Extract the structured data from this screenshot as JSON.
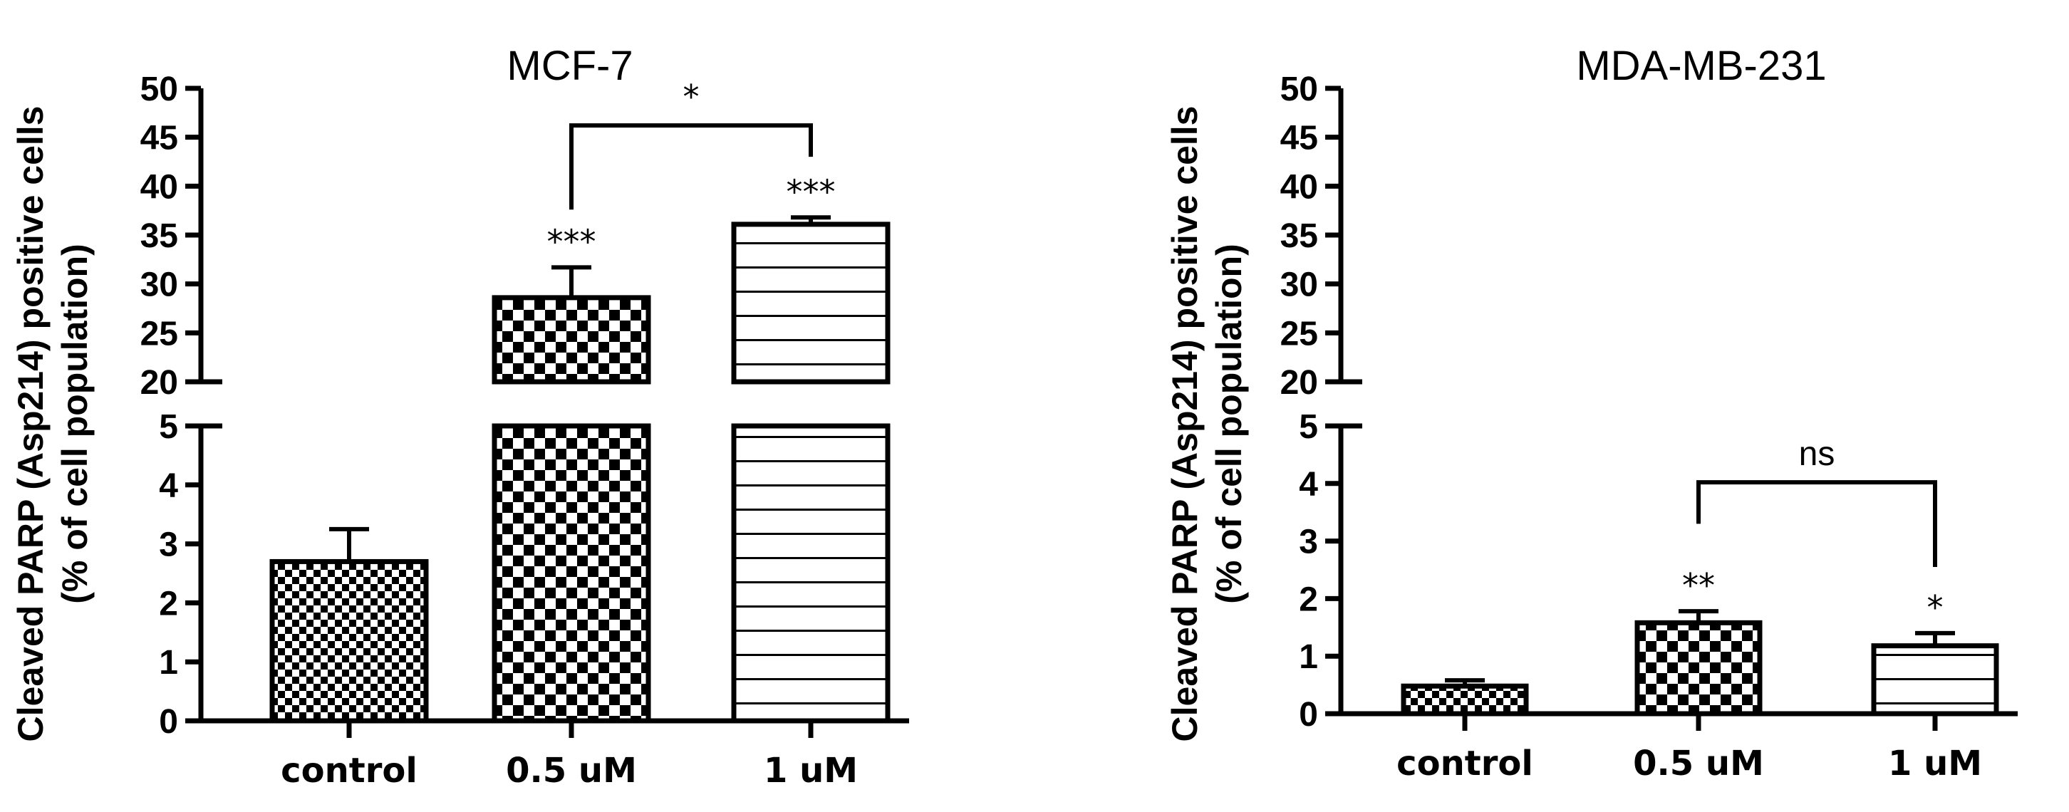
{
  "chart_data": [
    {
      "type": "bar",
      "title": "MCF-7",
      "ylabel_line1": "Cleaved PARP (Asp214) positive cells",
      "ylabel_line2": "(% of cell population)",
      "categories": [
        "control",
        "0.5 uM",
        "1 uM"
      ],
      "values": [
        2.7,
        28.6,
        36.1
      ],
      "errors": [
        0.55,
        3.1,
        0.7
      ],
      "patterns": [
        "checker-small",
        "checker-large",
        "horizontal-lines"
      ],
      "significance": [
        "",
        "***",
        "***"
      ],
      "bracket": {
        "from": 1,
        "to": 2,
        "label": "*"
      },
      "y_break": {
        "lower": [
          0,
          5
        ],
        "upper": [
          20,
          50
        ]
      },
      "lower_ticks": [
        0,
        1,
        2,
        3,
        4,
        5
      ],
      "upper_ticks": [
        20,
        25,
        30,
        35,
        40,
        45,
        50
      ]
    },
    {
      "type": "bar",
      "title": "MDA-MB-231",
      "ylabel_line1": "Cleaved PARP (Asp214) positive cells",
      "ylabel_line2": "(% of cell population)",
      "categories": [
        "control",
        "0.5 uM",
        "1 uM"
      ],
      "values": [
        0.48,
        1.58,
        1.18
      ],
      "errors": [
        0.1,
        0.2,
        0.22
      ],
      "patterns": [
        "checker-small",
        "checker-large",
        "horizontal-lines"
      ],
      "significance": [
        "",
        "**",
        "*"
      ],
      "bracket": {
        "from": 1,
        "to": 2,
        "label": "ns"
      },
      "y_break": {
        "lower": [
          0,
          5
        ],
        "upper": [
          20,
          50
        ]
      },
      "lower_ticks": [
        0,
        1,
        2,
        3,
        4,
        5
      ],
      "upper_ticks": [
        20,
        25,
        30,
        35,
        40,
        45,
        50
      ]
    }
  ]
}
